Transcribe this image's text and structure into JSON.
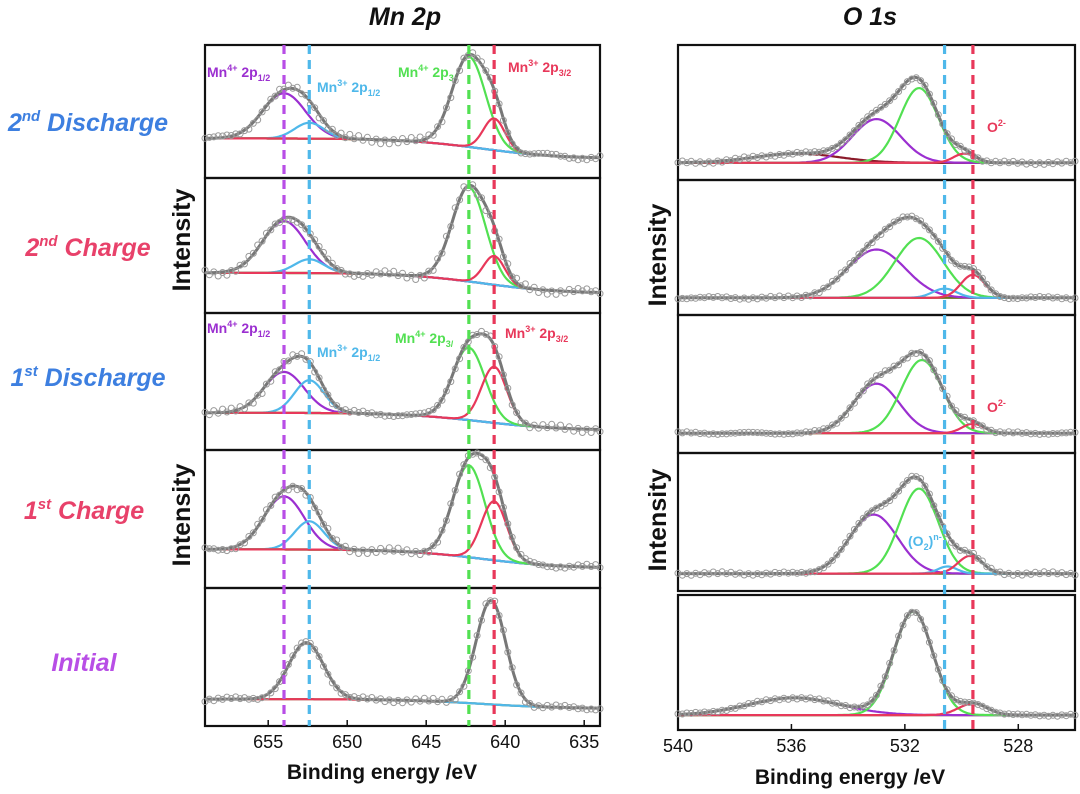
{
  "figure": {
    "panel_titles": [
      "Mn 2p",
      "O 1s"
    ],
    "sample_labels": [
      {
        "text_base": "2",
        "text_sup": "nd",
        "text_rest": " Discharge",
        "color": "#3d7fe0"
      },
      {
        "text_base": "2",
        "text_sup": "nd",
        "text_rest": " Charge",
        "color": "#e8416a"
      },
      {
        "text_base": "1",
        "text_sup": "st",
        "text_rest": " Discharge",
        "color": "#3d7fe0"
      },
      {
        "text_base": "1",
        "text_sup": "st",
        "text_rest": " Charge",
        "color": "#e8416a"
      },
      {
        "text_base": "",
        "text_sup": "",
        "text_rest": "Initial",
        "color": "#b84ee6"
      }
    ],
    "y_axis_label": "Intensity"
  },
  "chart_data": [
    {
      "type": "line",
      "title": "Mn 2p",
      "xlabel": "Binding energy /eV",
      "ylabel": "Intensity",
      "xlim": [
        659,
        634
      ],
      "xticks": [
        655,
        650,
        645,
        640,
        635
      ],
      "reference_lines": [
        {
          "x": 654.0,
          "color": "#b84ee6",
          "name": "Mn4+ 2p1/2"
        },
        {
          "x": 652.4,
          "color": "#4fb8ea",
          "name": "Mn3+ 2p1/2"
        },
        {
          "x": 642.3,
          "color": "#52e052",
          "name": "Mn4+ 2p3/2"
        },
        {
          "x": 640.7,
          "color": "#e8385a",
          "name": "Mn3+ 2p3/2"
        }
      ],
      "peak_labels": [
        {
          "base": "Mn",
          "sup": "4+",
          "post": " 2p",
          "sub": "1/2",
          "color": "#9b2fd0"
        },
        {
          "base": "Mn",
          "sup": "3+",
          "post": " 2p",
          "sub": "1/2",
          "color": "#4fb8ea"
        },
        {
          "base": "Mn",
          "sup": "4+",
          "post": " 2p",
          "sub": "3/",
          "color": "#52e052"
        },
        {
          "base": "Mn",
          "sup": "3+",
          "post": " 2p",
          "sub": "3/2",
          "color": "#e8385a"
        }
      ],
      "series_colors": {
        "envelope": "#777777",
        "points": "#9a9a9a",
        "background": "#6f6f1f",
        "Mn4+ 2p1/2": "#9b2fd0",
        "Mn3+ 2p1/2": "#4fb8ea",
        "Mn4+ 2p3/2": "#52e052",
        "Mn3+ 2p3/2": "#e8385a"
      },
      "spectra": [
        {
          "name": "2nd Discharge",
          "background": {
            "left": 0.28,
            "right": 0.1,
            "step_center": 641.5,
            "step_width": 2.5
          },
          "noise": 0.035,
          "peaks": [
            {
              "component": "Mn4+ 2p1/2",
              "center": 654.0,
              "height": 0.4,
              "fwhm": 3.2
            },
            {
              "component": "Mn3+ 2p1/2",
              "center": 652.4,
              "height": 0.14,
              "fwhm": 2.2
            },
            {
              "component": "Mn4+ 2p3/2",
              "center": 642.3,
              "height": 0.8,
              "fwhm": 2.5
            },
            {
              "component": "Mn3+ 2p3/2",
              "center": 640.7,
              "height": 0.28,
              "fwhm": 1.6
            }
          ]
        },
        {
          "name": "2nd Charge",
          "background": {
            "left": 0.28,
            "right": 0.1,
            "step_center": 641.5,
            "step_width": 2.5
          },
          "noise": 0.04,
          "peaks": [
            {
              "component": "Mn4+ 2p1/2",
              "center": 654.0,
              "height": 0.45,
              "fwhm": 3.2
            },
            {
              "component": "Mn3+ 2p1/2",
              "center": 652.4,
              "height": 0.12,
              "fwhm": 2.2
            },
            {
              "component": "Mn4+ 2p3/2",
              "center": 642.3,
              "height": 0.82,
              "fwhm": 2.5
            },
            {
              "component": "Mn3+ 2p3/2",
              "center": 640.7,
              "height": 0.25,
              "fwhm": 1.6
            }
          ]
        },
        {
          "name": "1st Discharge",
          "background": {
            "left": 0.25,
            "right": 0.1,
            "step_center": 641.5,
            "step_width": 2.5
          },
          "noise": 0.03,
          "peaks": [
            {
              "component": "Mn4+ 2p1/2",
              "center": 654.0,
              "height": 0.35,
              "fwhm": 3.0
            },
            {
              "component": "Mn3+ 2p1/2",
              "center": 652.4,
              "height": 0.28,
              "fwhm": 2.2
            },
            {
              "component": "Mn4+ 2p3/2",
              "center": 642.3,
              "height": 0.62,
              "fwhm": 2.4
            },
            {
              "component": "Mn3+ 2p3/2",
              "center": 640.7,
              "height": 0.48,
              "fwhm": 1.9
            }
          ]
        },
        {
          "name": "1st Charge",
          "background": {
            "left": 0.26,
            "right": 0.1,
            "step_center": 641.5,
            "step_width": 2.5
          },
          "noise": 0.03,
          "peaks": [
            {
              "component": "Mn4+ 2p1/2",
              "center": 654.0,
              "height": 0.45,
              "fwhm": 3.0
            },
            {
              "component": "Mn3+ 2p1/2",
              "center": 652.4,
              "height": 0.24,
              "fwhm": 2.2
            },
            {
              "component": "Mn4+ 2p3/2",
              "center": 642.3,
              "height": 0.78,
              "fwhm": 2.4
            },
            {
              "component": "Mn3+ 2p3/2",
              "center": 640.7,
              "height": 0.5,
              "fwhm": 1.9
            }
          ]
        },
        {
          "name": "Initial",
          "background": {
            "left": 0.16,
            "right": 0.08,
            "step_center": 641.5,
            "step_width": 2.5
          },
          "noise": 0.025,
          "peaks": [
            {
              "component": "Mn3+ 2p1/2",
              "center": 652.6,
              "height": 0.48,
              "fwhm": 2.6
            },
            {
              "component": "Mn3+ 2p3/2",
              "center": 640.9,
              "height": 0.88,
              "fwhm": 2.2
            }
          ]
        }
      ]
    },
    {
      "type": "line",
      "title": "O 1s",
      "xlabel": "Binding energy /eV",
      "ylabel": "Intensity",
      "xlim": [
        540,
        526
      ],
      "xticks": [
        540,
        536,
        532,
        528
      ],
      "reference_lines": [
        {
          "x": 530.6,
          "color": "#4fb8ea",
          "name": "(O2)n-"
        },
        {
          "x": 529.6,
          "color": "#e8385a",
          "name": "O2-"
        }
      ],
      "series_colors": {
        "envelope": "#777777",
        "points": "#9a9a9a",
        "background": "#6f6f1f",
        "broad": "#8b1a2a",
        "purple": "#9b2fd0",
        "green": "#52e052",
        "blue": "#4fb8ea",
        "red": "#e8385a"
      },
      "annotations": [
        {
          "spectrum": 0,
          "text": "O",
          "sup": "2-",
          "color": "#e8385a"
        },
        {
          "spectrum": 2,
          "text": "O",
          "sup": "2-",
          "color": "#e8385a"
        },
        {
          "spectrum": 3,
          "text": "(O",
          "sub": "2",
          "post": ")",
          "sup": "n-",
          "color": "#4fb8ea"
        }
      ],
      "spectra": [
        {
          "name": "2nd Discharge",
          "background": {
            "left": 0.08,
            "right": 0.08,
            "step_center": 532,
            "step_width": 2
          },
          "noise": 0.015,
          "peaks": [
            {
              "component": "broad",
              "center": 535.8,
              "height": 0.08,
              "fwhm": 3.5
            },
            {
              "component": "purple",
              "center": 533.0,
              "height": 0.38,
              "fwhm": 2.0
            },
            {
              "component": "green",
              "center": 531.5,
              "height": 0.65,
              "fwhm": 1.6
            },
            {
              "component": "red",
              "center": 529.9,
              "height": 0.08,
              "fwhm": 0.9
            }
          ]
        },
        {
          "name": "2nd Charge",
          "background": {
            "left": 0.08,
            "right": 0.08,
            "step_center": 532,
            "step_width": 2
          },
          "noise": 0.015,
          "peaks": [
            {
              "component": "purple",
              "center": 533.0,
              "height": 0.42,
              "fwhm": 2.4
            },
            {
              "component": "green",
              "center": 531.5,
              "height": 0.52,
              "fwhm": 2.0
            },
            {
              "component": "blue",
              "center": 530.6,
              "height": 0.08,
              "fwhm": 1.0
            },
            {
              "component": "red",
              "center": 529.6,
              "height": 0.2,
              "fwhm": 1.0
            }
          ]
        },
        {
          "name": "1st Discharge",
          "background": {
            "left": 0.1,
            "right": 0.1,
            "step_center": 532,
            "step_width": 2
          },
          "noise": 0.015,
          "peaks": [
            {
              "component": "purple",
              "center": 533.0,
              "height": 0.42,
              "fwhm": 1.9
            },
            {
              "component": "green",
              "center": 531.4,
              "height": 0.62,
              "fwhm": 1.7
            },
            {
              "component": "red",
              "center": 529.6,
              "height": 0.08,
              "fwhm": 0.9
            }
          ]
        },
        {
          "name": "1st Charge",
          "background": {
            "left": 0.08,
            "right": 0.08,
            "step_center": 532,
            "step_width": 2
          },
          "noise": 0.015,
          "peaks": [
            {
              "component": "purple",
              "center": 533.1,
              "height": 0.5,
              "fwhm": 2.0
            },
            {
              "component": "green",
              "center": 531.5,
              "height": 0.72,
              "fwhm": 1.6
            },
            {
              "component": "blue",
              "center": 530.5,
              "height": 0.06,
              "fwhm": 0.8
            },
            {
              "component": "red",
              "center": 529.7,
              "height": 0.15,
              "fwhm": 1.0
            }
          ]
        },
        {
          "name": "Initial",
          "background": {
            "left": 0.06,
            "right": 0.06,
            "step_center": 532,
            "step_width": 2
          },
          "noise": 0.012,
          "peaks": [
            {
              "component": "purple",
              "center": 535.9,
              "height": 0.15,
              "fwhm": 3.8
            },
            {
              "component": "green",
              "center": 531.7,
              "height": 0.9,
              "fwhm": 1.6
            },
            {
              "component": "red",
              "center": 529.6,
              "height": 0.1,
              "fwhm": 1.2
            }
          ]
        }
      ]
    }
  ]
}
